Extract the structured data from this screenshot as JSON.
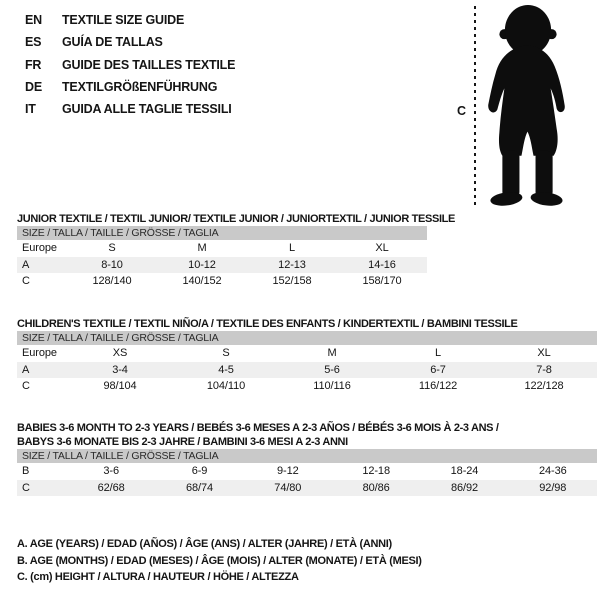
{
  "header": {
    "languages": [
      {
        "code": "EN",
        "label": "TEXTILE SIZE GUIDE"
      },
      {
        "code": "ES",
        "label": "GUÍA DE TALLAS"
      },
      {
        "code": "FR",
        "label": "GUIDE DES TAILLES TEXTILE"
      },
      {
        "code": "DE",
        "label": "TEXTILGRÖßENFÜHRUNG"
      },
      {
        "code": "IT",
        "label": "GUIDA ALLE TAGLIE TESSILI"
      }
    ]
  },
  "figure": {
    "height_label": "C",
    "icon": "baby-silhouette"
  },
  "tables": [
    {
      "title_lines": [
        "JUNIOR TEXTILE / TEXTIL JUNIOR/ TEXTILE JUNIOR / JUNIORTEXTIL / JUNIOR TESSILE"
      ],
      "size_header": "SIZE / TALLA / TAILLE / GRÖSSE / TAGLIA",
      "rows": [
        {
          "label": "Europe",
          "shaded": false,
          "values": [
            "S",
            "M",
            "L",
            "XL"
          ]
        },
        {
          "label": "A",
          "shaded": true,
          "values": [
            "8-10",
            "10-12",
            "12-13",
            "14-16"
          ]
        },
        {
          "label": "C",
          "shaded": false,
          "values": [
            "128/140",
            "140/152",
            "152/158",
            "158/170"
          ]
        }
      ]
    },
    {
      "title_lines": [
        "CHILDREN'S TEXTILE / TEXTIL NIÑO/A / TEXTILE DES ENFANTS / KINDERTEXTIL / BAMBINI TESSILE"
      ],
      "size_header": "SIZE / TALLA / TAILLE / GRÖSSE / TAGLIA",
      "rows": [
        {
          "label": "Europe",
          "shaded": false,
          "values": [
            "XS",
            "S",
            "M",
            "L",
            "XL"
          ]
        },
        {
          "label": "A",
          "shaded": true,
          "values": [
            "3-4",
            "4-5",
            "5-6",
            "6-7",
            "7-8"
          ]
        },
        {
          "label": "C",
          "shaded": false,
          "values": [
            "98/104",
            "104/110",
            "110/116",
            "116/122",
            "122/128"
          ]
        }
      ]
    },
    {
      "title_lines": [
        "BABIES 3-6 MONTH TO 2-3 YEARS / BEBÉS 3-6 MESES A 2-3 AÑOS / BÉBÉS 3-6 MOIS À 2-3 ANS /",
        "BABYS 3-6 MONATE BIS 2-3 JAHRE / BAMBINI 3-6 MESI A 2-3 ANNI"
      ],
      "size_header": "SIZE / TALLA / TAILLE / GRÖSSE / TAGLIA",
      "rows": [
        {
          "label": "B",
          "shaded": false,
          "values": [
            "3-6",
            "6-9",
            "9-12",
            "12-18",
            "18-24",
            "24-36"
          ]
        },
        {
          "label": "C",
          "shaded": true,
          "values": [
            "62/68",
            "68/74",
            "74/80",
            "80/86",
            "86/92",
            "92/98"
          ]
        }
      ]
    }
  ],
  "legend": {
    "lines": [
      "A. AGE (YEARS) / EDAD (AÑOS) / ÂGE (ANS) / ALTER (JAHRE) / ETÀ (ANNI)",
      "B. AGE (MONTHS) / EDAD (MESES) / ÂGE (MOIS) / ALTER (MONATE) / ETÀ (MESI)",
      "C. (cm) HEIGHT / ALTURA / HAUTEUR / HÖHE / ALTEZZA"
    ]
  },
  "colors": {
    "table_header_bg": "#c9c9c9",
    "row_shaded_bg": "#efefef",
    "text": "#151515",
    "silhouette": "#0d0d0d"
  }
}
